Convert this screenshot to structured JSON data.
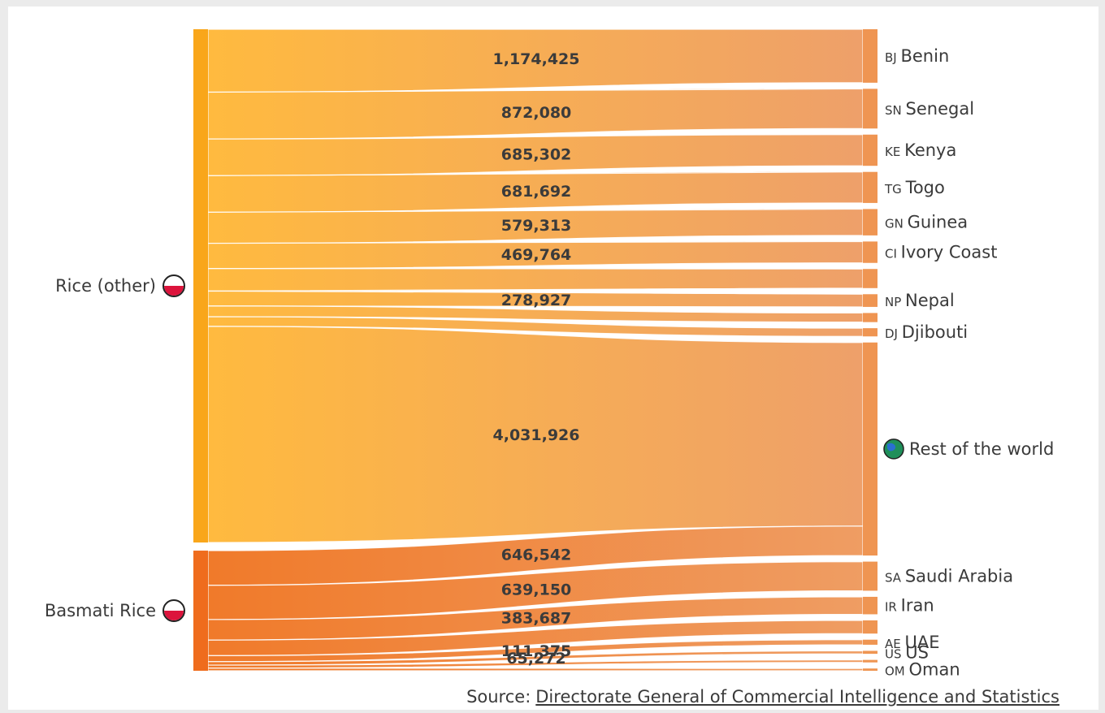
{
  "chart_data": {
    "type": "sankey",
    "colors": {
      "rice_other_node": "#f9a61a",
      "basmati_node": "#ef6c1d",
      "target_node": "#ef9552",
      "link_light": "#ffbb47",
      "link_dark": "#f0a064",
      "basmati_link": "#f2883c",
      "globe": "#1f8f5a"
    },
    "sources": [
      {
        "id": "rice_other",
        "label": "Rice (other)",
        "flag": "poland-flag-icon"
      },
      {
        "id": "basmati",
        "label": "Basmati Rice",
        "flag": "poland-flag-icon"
      }
    ],
    "targets": [
      {
        "id": "BJ",
        "code": "BJ",
        "label": "Benin"
      },
      {
        "id": "SN",
        "code": "SN",
        "label": "Senegal"
      },
      {
        "id": "KE",
        "code": "KE",
        "label": "Kenya"
      },
      {
        "id": "TG",
        "code": "TG",
        "label": "Togo"
      },
      {
        "id": "GN",
        "code": "GN",
        "label": "Guinea"
      },
      {
        "id": "CI",
        "code": "CI",
        "label": "Ivory Coast"
      },
      {
        "id": "X1",
        "code": "",
        "label": ""
      },
      {
        "id": "NP",
        "code": "NP",
        "label": "Nepal"
      },
      {
        "id": "X2",
        "code": "",
        "label": ""
      },
      {
        "id": "DJ",
        "code": "DJ",
        "label": "Djibouti"
      },
      {
        "id": "ROW",
        "code": "",
        "label": "Rest of the world",
        "icon": "globe-icon"
      },
      {
        "id": "SA",
        "code": "SA",
        "label": "Saudi Arabia"
      },
      {
        "id": "IR",
        "code": "IR",
        "label": "Iran"
      },
      {
        "id": "X3",
        "code": "",
        "label": ""
      },
      {
        "id": "AE",
        "code": "AE",
        "label": "UAE"
      },
      {
        "id": "US",
        "code": "US",
        "label": "US"
      },
      {
        "id": "X4",
        "code": "",
        "label": ""
      },
      {
        "id": "OM",
        "code": "OM",
        "label": "Oman"
      }
    ],
    "links": [
      {
        "source": "rice_other",
        "target": "BJ",
        "value": 1174425,
        "label": "1,174,425"
      },
      {
        "source": "rice_other",
        "target": "SN",
        "value": 872080,
        "label": "872,080"
      },
      {
        "source": "rice_other",
        "target": "KE",
        "value": 685302,
        "label": "685,302"
      },
      {
        "source": "rice_other",
        "target": "TG",
        "value": 681692,
        "label": "681,692"
      },
      {
        "source": "rice_other",
        "target": "GN",
        "value": 579313,
        "label": "579,313"
      },
      {
        "source": "rice_other",
        "target": "CI",
        "value": 469764,
        "label": "469,764"
      },
      {
        "source": "rice_other",
        "target": "X1",
        "value": 420000,
        "label": ""
      },
      {
        "source": "rice_other",
        "target": "NP",
        "value": 278927,
        "label": "278,927"
      },
      {
        "source": "rice_other",
        "target": "X2",
        "value": 200000,
        "label": ""
      },
      {
        "source": "rice_other",
        "target": "DJ",
        "value": 180000,
        "label": ""
      },
      {
        "source": "rice_other",
        "target": "ROW",
        "value": 4031926,
        "label": "4,031,926"
      },
      {
        "source": "basmati",
        "target": "ROW",
        "value": 646542,
        "label": "646,542"
      },
      {
        "source": "basmati",
        "target": "SA",
        "value": 639150,
        "label": "639,150"
      },
      {
        "source": "basmati",
        "target": "IR",
        "value": 383687,
        "label": "383,687"
      },
      {
        "source": "basmati",
        "target": "X3",
        "value": 290000,
        "label": ""
      },
      {
        "source": "basmati",
        "target": "AE",
        "value": 111375,
        "label": "111,375"
      },
      {
        "source": "basmati",
        "target": "US",
        "value": 65272,
        "label": "65,272"
      },
      {
        "source": "basmati",
        "target": "X4",
        "value": 55000,
        "label": ""
      },
      {
        "source": "basmati",
        "target": "OM",
        "value": 50000,
        "label": ""
      }
    ]
  },
  "source": {
    "label": "Source:",
    "link_text": "Directorate General of Commercial Intelligence and Statistics"
  }
}
